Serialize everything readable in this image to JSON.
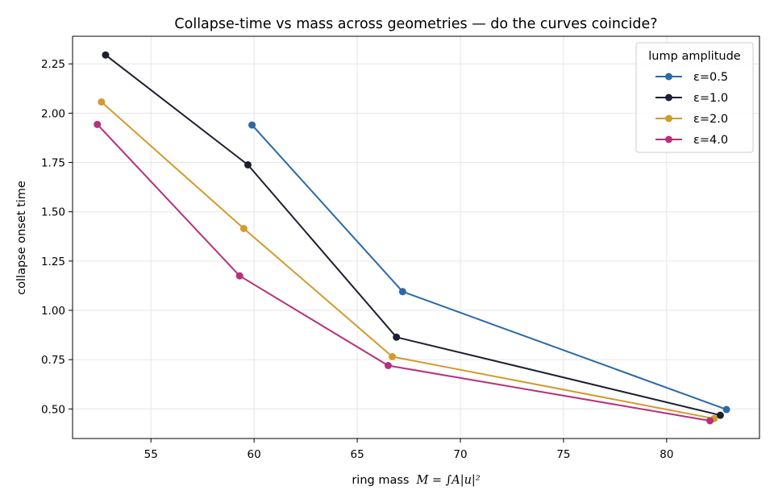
{
  "chart_data": {
    "type": "line",
    "title": "Collapse-time vs mass across geometries — do the curves coincide?",
    "xlabel_prefix": "ring mass",
    "xlabel_math": "M = ∫A|u|²",
    "ylabel": "collapse onset time",
    "xlim": [
      51.2,
      84.5
    ],
    "ylim": [
      0.35,
      2.39
    ],
    "xticks": [
      55,
      60,
      65,
      70,
      75,
      80
    ],
    "yticks": [
      0.5,
      0.75,
      1.0,
      1.25,
      1.5,
      1.75,
      2.0,
      2.25
    ],
    "grid": true,
    "legend": {
      "title": "lump amplitude",
      "position": "top-right"
    },
    "series": [
      {
        "name": "ε=0.5",
        "color": "#2b6aa8",
        "x": [
          59.9,
          67.2,
          82.9
        ],
        "y": [
          1.94,
          1.095,
          0.497
        ]
      },
      {
        "name": "ε=1.0",
        "color": "#1c2030",
        "x": [
          52.8,
          59.7,
          66.9,
          82.6
        ],
        "y": [
          2.295,
          1.738,
          0.864,
          0.468
        ]
      },
      {
        "name": "ε=2.0",
        "color": "#d39a2e",
        "x": [
          52.6,
          59.5,
          66.7,
          82.3
        ],
        "y": [
          2.057,
          1.415,
          0.765,
          0.451
        ]
      },
      {
        "name": "ε=4.0",
        "color": "#b8307a",
        "x": [
          52.4,
          59.3,
          66.5,
          82.1
        ],
        "y": [
          1.943,
          1.175,
          0.72,
          0.44
        ]
      }
    ]
  }
}
